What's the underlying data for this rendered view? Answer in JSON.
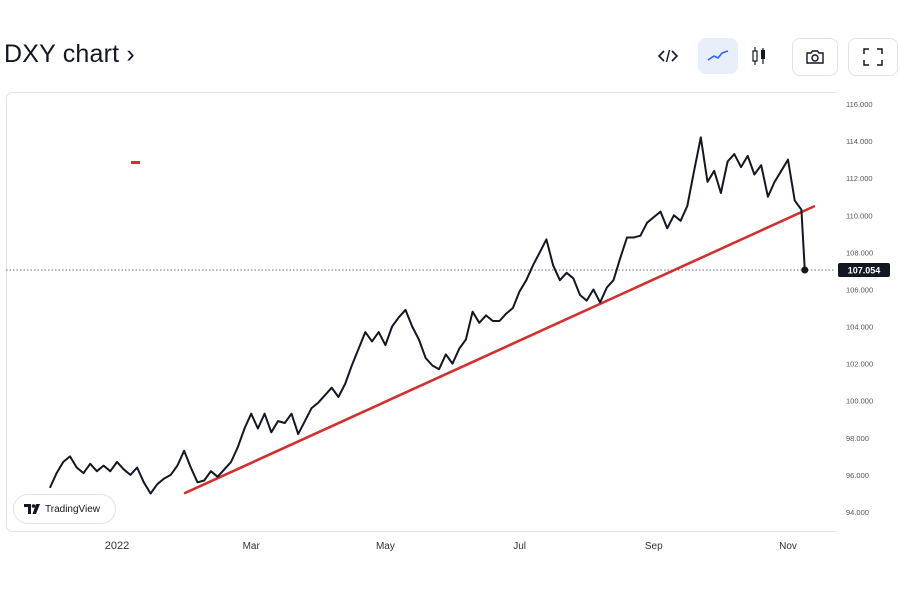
{
  "header": {
    "title": "DXY chart ›"
  },
  "toolbar": {
    "embed_icon": "code-icon",
    "line_icon": "line-chart-icon",
    "candle_icon": "candlestick-icon",
    "screenshot_icon": "camera-icon",
    "fullscreen_icon": "fullscreen-icon"
  },
  "brand": {
    "label": "TradingView"
  },
  "chart_data": {
    "type": "line",
    "title": "DXY chart",
    "x_ticks": [
      {
        "label": "2022",
        "month": 12
      },
      {
        "label": "Mar",
        "month": 14
      },
      {
        "label": "May",
        "month": 16
      },
      {
        "label": "Jul",
        "month": 18
      },
      {
        "label": "Sep",
        "month": 20
      },
      {
        "label": "Nov",
        "month": 22
      }
    ],
    "y_ticks": [
      "116.000",
      "114.000",
      "112.000",
      "110.000",
      "108.000",
      "106.000",
      "104.000",
      "102.000",
      "100.000",
      "98.000",
      "96.000",
      "94.000"
    ],
    "ylim": [
      94,
      116
    ],
    "last_value_label": "107.054",
    "last_value": 107.05,
    "series": [
      {
        "color": "#131722",
        "points": [
          [
            11.0,
            95.3
          ],
          [
            11.1,
            96.1
          ],
          [
            11.2,
            96.7
          ],
          [
            11.3,
            97.0
          ],
          [
            11.4,
            96.4
          ],
          [
            11.5,
            96.1
          ],
          [
            11.6,
            96.6
          ],
          [
            11.7,
            96.2
          ],
          [
            11.8,
            96.5
          ],
          [
            11.9,
            96.2
          ],
          [
            12.0,
            96.7
          ],
          [
            12.1,
            96.3
          ],
          [
            12.2,
            96.0
          ],
          [
            12.3,
            96.4
          ],
          [
            12.4,
            95.6
          ],
          [
            12.5,
            95.0
          ],
          [
            12.6,
            95.5
          ],
          [
            12.7,
            95.8
          ],
          [
            12.8,
            96.0
          ],
          [
            12.9,
            96.5
          ],
          [
            13.0,
            97.3
          ],
          [
            13.1,
            96.4
          ],
          [
            13.2,
            95.6
          ],
          [
            13.3,
            95.7
          ],
          [
            13.4,
            96.2
          ],
          [
            13.5,
            95.9
          ],
          [
            13.6,
            96.3
          ],
          [
            13.7,
            96.7
          ],
          [
            13.8,
            97.5
          ],
          [
            13.9,
            98.5
          ],
          [
            14.0,
            99.3
          ],
          [
            14.1,
            98.5
          ],
          [
            14.2,
            99.3
          ],
          [
            14.3,
            98.3
          ],
          [
            14.4,
            98.9
          ],
          [
            14.5,
            98.8
          ],
          [
            14.6,
            99.3
          ],
          [
            14.7,
            98.2
          ],
          [
            14.8,
            98.9
          ],
          [
            14.9,
            99.6
          ],
          [
            15.0,
            99.9
          ],
          [
            15.1,
            100.3
          ],
          [
            15.2,
            100.7
          ],
          [
            15.3,
            100.2
          ],
          [
            15.4,
            100.9
          ],
          [
            15.5,
            101.9
          ],
          [
            15.6,
            102.8
          ],
          [
            15.7,
            103.7
          ],
          [
            15.8,
            103.2
          ],
          [
            15.9,
            103.7
          ],
          [
            16.0,
            103.0
          ],
          [
            16.1,
            104.0
          ],
          [
            16.2,
            104.5
          ],
          [
            16.3,
            104.9
          ],
          [
            16.4,
            104.0
          ],
          [
            16.5,
            103.3
          ],
          [
            16.6,
            102.3
          ],
          [
            16.7,
            101.9
          ],
          [
            16.8,
            101.7
          ],
          [
            16.9,
            102.5
          ],
          [
            17.0,
            102.0
          ],
          [
            17.1,
            102.8
          ],
          [
            17.2,
            103.3
          ],
          [
            17.3,
            104.8
          ],
          [
            17.4,
            104.2
          ],
          [
            17.5,
            104.6
          ],
          [
            17.6,
            104.3
          ],
          [
            17.7,
            104.3
          ],
          [
            17.8,
            104.7
          ],
          [
            17.9,
            105.0
          ],
          [
            18.0,
            105.9
          ],
          [
            18.1,
            106.5
          ],
          [
            18.2,
            107.3
          ],
          [
            18.3,
            108.0
          ],
          [
            18.4,
            108.7
          ],
          [
            18.5,
            107.3
          ],
          [
            18.6,
            106.5
          ],
          [
            18.7,
            106.9
          ],
          [
            18.8,
            106.6
          ],
          [
            18.9,
            105.7
          ],
          [
            19.0,
            105.4
          ],
          [
            19.1,
            106.0
          ],
          [
            19.2,
            105.3
          ],
          [
            19.3,
            106.1
          ],
          [
            19.4,
            106.5
          ],
          [
            19.5,
            107.7
          ],
          [
            19.6,
            108.8
          ],
          [
            19.7,
            108.8
          ],
          [
            19.8,
            108.9
          ],
          [
            19.9,
            109.6
          ],
          [
            20.0,
            109.9
          ],
          [
            20.1,
            110.2
          ],
          [
            20.2,
            109.3
          ],
          [
            20.3,
            110.0
          ],
          [
            20.4,
            109.7
          ],
          [
            20.5,
            110.5
          ],
          [
            20.6,
            112.4
          ],
          [
            20.7,
            114.2
          ],
          [
            20.8,
            111.8
          ],
          [
            20.9,
            112.4
          ],
          [
            21.0,
            111.2
          ],
          [
            21.1,
            112.9
          ],
          [
            21.2,
            113.3
          ],
          [
            21.3,
            112.6
          ],
          [
            21.4,
            113.2
          ],
          [
            21.5,
            112.2
          ],
          [
            21.6,
            112.7
          ],
          [
            21.7,
            111.0
          ],
          [
            21.8,
            111.8
          ],
          [
            21.9,
            112.4
          ],
          [
            22.0,
            113.0
          ],
          [
            22.1,
            110.8
          ],
          [
            22.2,
            110.3
          ],
          [
            22.25,
            107.05
          ]
        ]
      }
    ],
    "trendline": {
      "color": "#d32f2f",
      "from": [
        13.0,
        95.0
      ],
      "to": [
        22.4,
        110.5
      ]
    },
    "marker": {
      "color": "#d32f2f"
    },
    "grid": false,
    "legend": "none"
  }
}
